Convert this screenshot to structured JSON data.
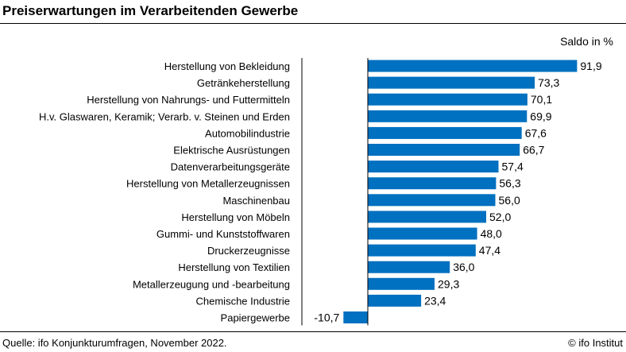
{
  "chart_data": {
    "type": "bar",
    "orientation": "horizontal",
    "title": "Preiserwartungen im Verarbeitenden Gewerbe",
    "unit_label": "Saldo in %",
    "categories": [
      "Herstellung von Bekleidung",
      "Getränkeherstellung",
      "Herstellung von Nahrungs- und Futtermitteln",
      "H.v. Glaswaren, Keramik; Verarb. v. Steinen und Erden",
      "Automobilindustrie",
      "Elektrische Ausrüstungen",
      "Datenverarbeitungsgeräte",
      "Herstellung von Metallerzeugnissen",
      "Maschinenbau",
      "Herstellung von Möbeln",
      "Gummi- und Kunststoffwaren",
      "Druckerzeugnisse",
      "Herstellung von Textilien",
      "Metallerzeugung und -bearbeitung",
      "Chemische Industrie",
      "Papiergewerbe"
    ],
    "values": [
      91.9,
      73.3,
      70.1,
      69.9,
      67.6,
      66.7,
      57.4,
      56.3,
      56.0,
      52.0,
      48.0,
      47.4,
      36.0,
      29.3,
      23.4,
      -10.7
    ],
    "value_labels": [
      "91,9",
      "73,3",
      "70,1",
      "69,9",
      "67,6",
      "66,7",
      "57,4",
      "56,3",
      "56,0",
      "52,0",
      "48,0",
      "47,4",
      "36,0",
      "29,3",
      "23,4",
      "-10,7"
    ],
    "bar_color": "#0070c0",
    "grid": false,
    "legend": "none"
  },
  "footer": {
    "source": "Quelle: ifo Konjunkturumfragen, November 2022.",
    "credit": "© ifo Institut"
  }
}
